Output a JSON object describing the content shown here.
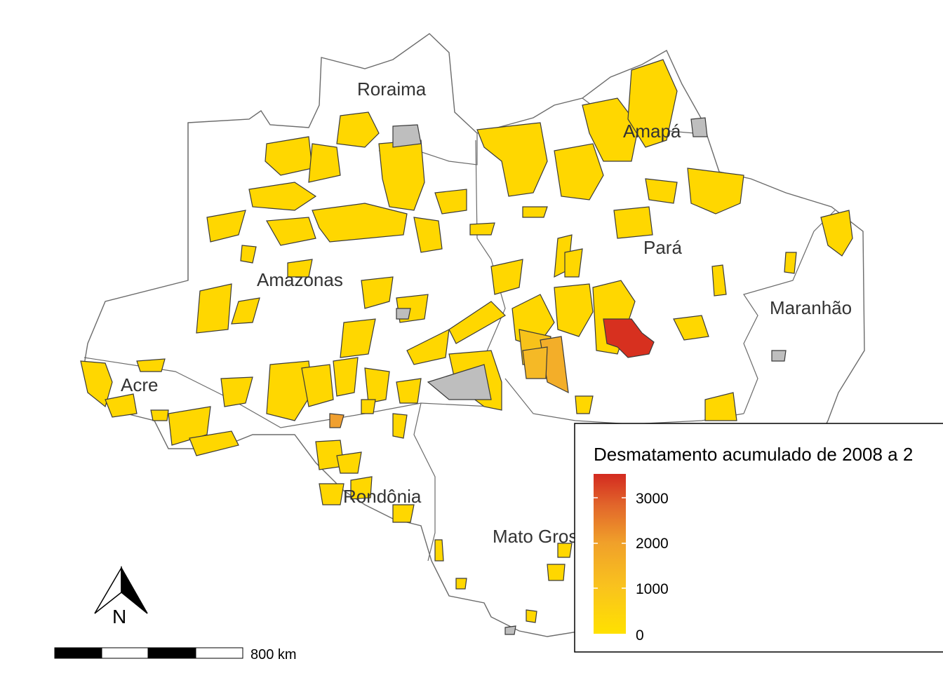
{
  "map": {
    "states": [
      {
        "id": "roraima",
        "label": "Roraima"
      },
      {
        "id": "amapa",
        "label": "Amapá"
      },
      {
        "id": "amazonas",
        "label": "Amazonas"
      },
      {
        "id": "para",
        "label": "Pará"
      },
      {
        "id": "maranhao",
        "label": "Maranhão"
      },
      {
        "id": "acre",
        "label": "Acre"
      },
      {
        "id": "rondonia",
        "label": "Rondônia"
      },
      {
        "id": "mato_grosso",
        "label": "Mato Grosso"
      }
    ],
    "colors": {
      "low": "#FFD700",
      "mid": "#F4A623",
      "high": "#D7301F",
      "no_data": "#BEBEBE",
      "state_border": "#6b6b6b",
      "background": "#ffffff"
    }
  },
  "legend": {
    "title": "Desmatamento acumulado de 2008 a 2",
    "ticks": [
      "3000",
      "2000",
      "1000",
      "0"
    ],
    "range": [
      0,
      3500
    ]
  },
  "scale_bar": {
    "label": "800 km"
  },
  "north_arrow": {
    "label": "N"
  }
}
